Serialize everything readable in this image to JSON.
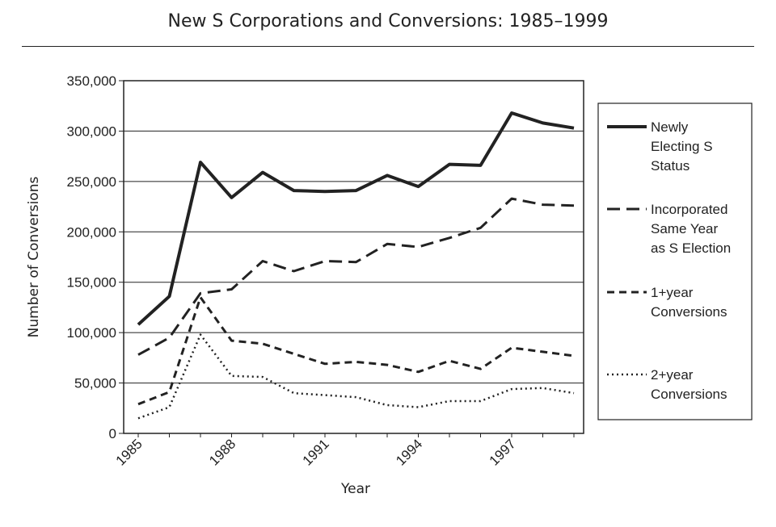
{
  "chart_data": {
    "type": "line",
    "title": "New S Corporations and Conversions: 1985–1999",
    "xlabel": "Year",
    "ylabel": "Number of Conversions",
    "x": [
      1985,
      1986,
      1987,
      1988,
      1989,
      1990,
      1991,
      1992,
      1993,
      1994,
      1995,
      1996,
      1997,
      1998,
      1999
    ],
    "x_ticks": [
      "1985",
      "1988",
      "1991",
      "1994",
      "1997"
    ],
    "y_ticks": [
      "0",
      "50,000",
      "100,000",
      "150,000",
      "200,000",
      "250,000",
      "300,000",
      "350,000"
    ],
    "xlim": [
      1985,
      1999
    ],
    "ylim": [
      0,
      350000
    ],
    "grid": "horizontal",
    "legend_position": "right",
    "series": [
      {
        "name": "Newly Electing S Status",
        "legend_lines": [
          "Newly",
          "Electing S",
          "Status"
        ],
        "style": "solid",
        "values": [
          108000,
          136000,
          269000,
          234000,
          259000,
          241000,
          240000,
          241000,
          256000,
          245000,
          267000,
          266000,
          318000,
          308000,
          303000
        ]
      },
      {
        "name": "Incorporated Same Year as S Election",
        "legend_lines": [
          "Incorporated",
          "Same Year",
          "as S Election"
        ],
        "style": "long-dash",
        "values": [
          78000,
          95000,
          139000,
          143000,
          171000,
          161000,
          171000,
          170000,
          188000,
          185000,
          194000,
          204000,
          233000,
          227000,
          226000
        ]
      },
      {
        "name": "1+year Conversions",
        "legend_lines": [
          "1+year",
          "Conversions"
        ],
        "style": "short-dash",
        "values": [
          29000,
          41000,
          135000,
          92000,
          89000,
          79000,
          69000,
          71000,
          68000,
          61000,
          72000,
          64000,
          85000,
          81000,
          77000
        ]
      },
      {
        "name": "2+year Conversions",
        "legend_lines": [
          "2+year",
          "Conversions"
        ],
        "style": "dotted",
        "values": [
          15000,
          26000,
          98000,
          57000,
          56000,
          40000,
          38000,
          36000,
          28000,
          26000,
          32000,
          32000,
          44000,
          45000,
          40000
        ]
      }
    ]
  }
}
